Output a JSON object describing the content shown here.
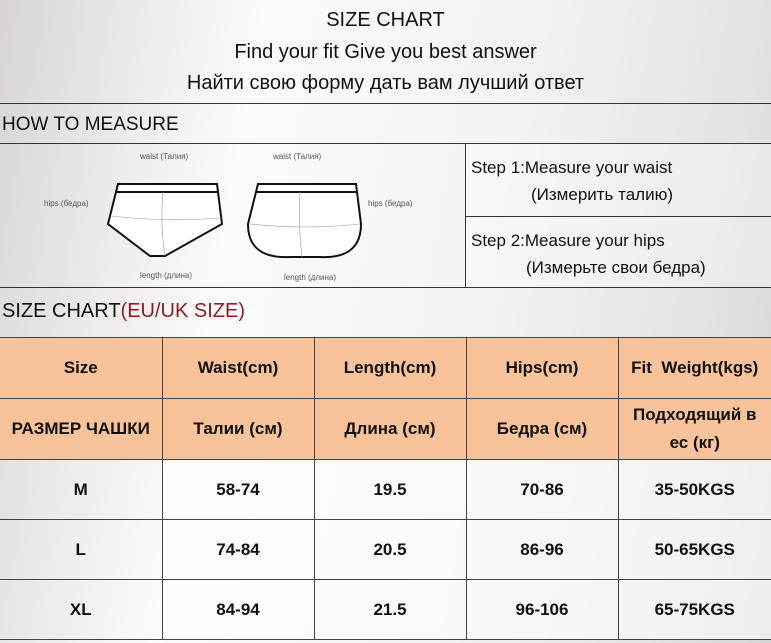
{
  "title": {
    "line1": "SIZE CHART",
    "line2": "Find your fit Give you best answer",
    "line3": "Найти свою форму дать вам лучший ответ"
  },
  "how_to_measure": {
    "heading": "HOW TO MEASURE",
    "diagram": {
      "waist": "waist (Талия)",
      "hips": "hips (бедра)",
      "length": "length (длина)"
    },
    "steps": [
      {
        "en": "Step 1:Measure your waist",
        "ru": "(Измерить талию)"
      },
      {
        "en": "Step 2:Measure your hips",
        "ru": "(Измерьте свои бедра)"
      }
    ]
  },
  "size_chart": {
    "heading": "SIZE CHART",
    "heading_note": "(EU/UK SIZE)",
    "note_color": "#8b1d1d",
    "header_color": "#f8c39a",
    "headers_en": [
      "Size",
      "Waist(cm)",
      "Length(cm)",
      "Hips(cm)",
      "Fit  Weight(kgs)"
    ],
    "headers_ru": [
      "РАЗМЕР ЧАШКИ",
      "Талии (см)",
      "Длина (см)",
      "Бедра (см)",
      "Подходящий в ес (кг)"
    ],
    "rows": [
      [
        "M",
        "58-74",
        "19.5",
        "70-86",
        "35-50KGS"
      ],
      [
        "L",
        "74-84",
        "20.5",
        "86-96",
        "50-65KGS"
      ],
      [
        "XL",
        "84-94",
        "21.5",
        "96-106",
        "65-75KGS"
      ]
    ]
  }
}
